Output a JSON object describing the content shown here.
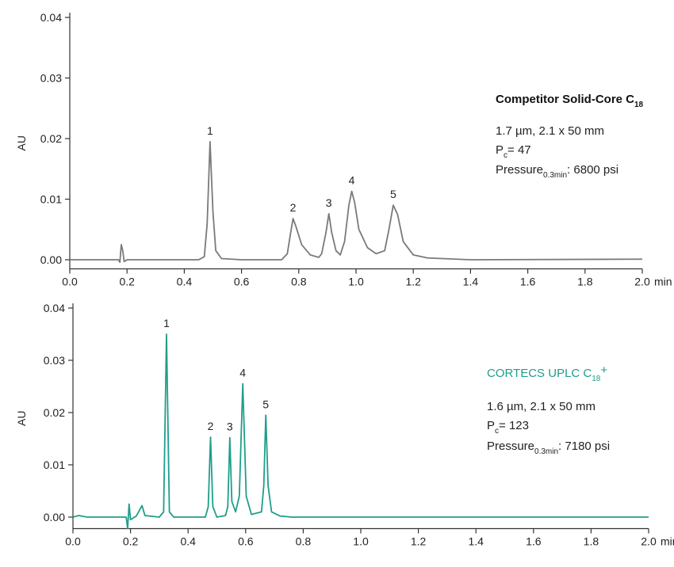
{
  "chart_data": [
    {
      "type": "line",
      "ylabel": "AU",
      "xlabel": "min",
      "xlim": [
        0,
        2
      ],
      "ylim": [
        -0.0015,
        0.04
      ],
      "xticks": [
        {
          "value": 0,
          "label": "0.0"
        },
        0.2,
        0.4,
        0.6,
        0.8,
        {
          "value": 1,
          "label": "1.0"
        },
        1.2,
        1.4,
        1.6,
        1.8,
        {
          "value": 2,
          "label": "2.0"
        }
      ],
      "yticks": [
        {
          "value": 0,
          "label": "0.00"
        },
        0.01,
        0.02,
        0.03,
        0.04
      ],
      "x": [
        0,
        0.1,
        0.17,
        0.175,
        0.18,
        0.185,
        0.19,
        0.2,
        0.3,
        0.45,
        0.47,
        0.48,
        0.49,
        0.5,
        0.51,
        0.53,
        0.6,
        0.74,
        0.76,
        0.77,
        0.78,
        0.79,
        0.81,
        0.84,
        0.87,
        0.88,
        0.895,
        0.905,
        0.915,
        0.93,
        0.945,
        0.96,
        0.975,
        0.985,
        0.995,
        1.01,
        1.04,
        1.07,
        1.1,
        1.115,
        1.13,
        1.145,
        1.165,
        1.2,
        1.25,
        1.4,
        2.0
      ],
      "series": [
        {
          "name": [
            "Competitor Solid-Core C",
            "18"
          ],
          "color": "#7a7a7a",
          "values": [
            0,
            0,
            0,
            -0.0004,
            0.0025,
            0.0015,
            -0.0003,
            0,
            0,
            0,
            0.0005,
            0.006,
            0.0195,
            0.008,
            0.0015,
            0.0002,
            0,
            0,
            0.001,
            0.004,
            0.0068,
            0.0055,
            0.0025,
            0.0008,
            0.0004,
            0.001,
            0.0045,
            0.0076,
            0.0045,
            0.0015,
            0.0008,
            0.003,
            0.009,
            0.0113,
            0.0095,
            0.005,
            0.002,
            0.001,
            0.0015,
            0.005,
            0.009,
            0.0075,
            0.003,
            0.0008,
            0.0003,
            0,
            0.0001
          ]
        }
      ],
      "info": [
        [
          "1.7 µm, 2.1 x 50 mm"
        ],
        [
          "P",
          "c",
          "= 47"
        ],
        [
          "Pressure",
          "0.3min",
          ": 6800 psi"
        ]
      ],
      "annotations": [
        {
          "text": "1",
          "x": 0.49,
          "y": 0.0195
        },
        {
          "text": "2",
          "x": 0.78,
          "y": 0.0068
        },
        {
          "text": "3",
          "x": 0.905,
          "y": 0.0076
        },
        {
          "text": "4",
          "x": 0.985,
          "y": 0.0113
        },
        {
          "text": "5",
          "x": 1.13,
          "y": 0.009
        }
      ]
    },
    {
      "type": "line",
      "ylabel": "AU",
      "xlabel": "min",
      "xlim": [
        0,
        2
      ],
      "ylim": [
        -0.0022,
        0.04
      ],
      "xticks": [
        {
          "value": 0,
          "label": "0.0"
        },
        0.2,
        0.4,
        0.6,
        0.8,
        {
          "value": 1,
          "label": "1.0"
        },
        1.2,
        1.4,
        1.6,
        1.8,
        {
          "value": 2,
          "label": "2.0"
        }
      ],
      "yticks": [
        {
          "value": 0,
          "label": "0.00"
        },
        0.01,
        0.02,
        0.03,
        0.04
      ],
      "x": [
        0,
        0.02,
        0.05,
        0.15,
        0.185,
        0.19,
        0.195,
        0.2,
        0.22,
        0.24,
        0.25,
        0.3,
        0.315,
        0.325,
        0.335,
        0.35,
        0.46,
        0.47,
        0.478,
        0.486,
        0.5,
        0.53,
        0.538,
        0.545,
        0.552,
        0.565,
        0.578,
        0.59,
        0.602,
        0.62,
        0.655,
        0.663,
        0.67,
        0.678,
        0.69,
        0.72,
        0.76,
        2.0
      ],
      "series": [
        {
          "name": [
            "CORTECS UPLC C",
            "18",
            "+"
          ],
          "color": "#1f9e8a",
          "values": [
            0,
            0.0003,
            0,
            0,
            0,
            -0.0022,
            0.0025,
            -0.0005,
            0.0002,
            0.0022,
            0.0003,
            0,
            0.001,
            0.035,
            0.001,
            0,
            0,
            0.002,
            0.0153,
            0.002,
            0,
            0.0003,
            0.002,
            0.0152,
            0.003,
            0.001,
            0.004,
            0.0255,
            0.004,
            0.0005,
            0.001,
            0.006,
            0.0195,
            0.006,
            0.001,
            0.0002,
            0,
            0
          ]
        }
      ],
      "info": [
        [
          "1.6 µm, 2.1 x 50 mm"
        ],
        [
          "P",
          "c",
          "= 123"
        ],
        [
          "Pressure",
          "0.3min",
          ": 7180 psi"
        ]
      ],
      "annotations": [
        {
          "text": "1",
          "x": 0.325,
          "y": 0.035
        },
        {
          "text": "2",
          "x": 0.478,
          "y": 0.0153
        },
        {
          "text": "3",
          "x": 0.545,
          "y": 0.0152
        },
        {
          "text": "4",
          "x": 0.59,
          "y": 0.0255
        },
        {
          "text": "5",
          "x": 0.67,
          "y": 0.0195
        }
      ]
    }
  ]
}
